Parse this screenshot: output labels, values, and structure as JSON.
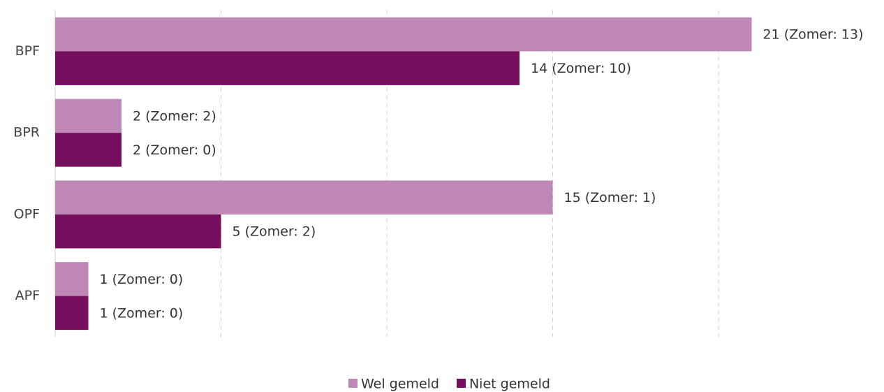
{
  "chart_data": {
    "type": "bar",
    "orientation": "horizontal",
    "categories": [
      "BPF",
      "BPR",
      "OPF",
      "APF"
    ],
    "series": [
      {
        "name": "Wel gemeld",
        "color": "#bf87b6",
        "values": [
          21,
          2,
          15,
          1
        ],
        "value_labels": [
          "21 (Zomer: 13)",
          "2 (Zomer: 2)",
          "15 (Zomer: 1)",
          "1 (Zomer: 0)"
        ]
      },
      {
        "name": "Niet gemeld",
        "color": "#750e5c",
        "values": [
          14,
          2,
          5,
          1
        ],
        "value_labels": [
          "14 (Zomer: 10)",
          "2 (Zomer: 0)",
          "5 (Zomer: 2)",
          "1 (Zomer: 0)"
        ]
      }
    ],
    "xlim": [
      0,
      25
    ],
    "xticks": [
      0,
      5,
      10,
      15,
      20
    ],
    "grid": true,
    "legend": "bottom"
  }
}
